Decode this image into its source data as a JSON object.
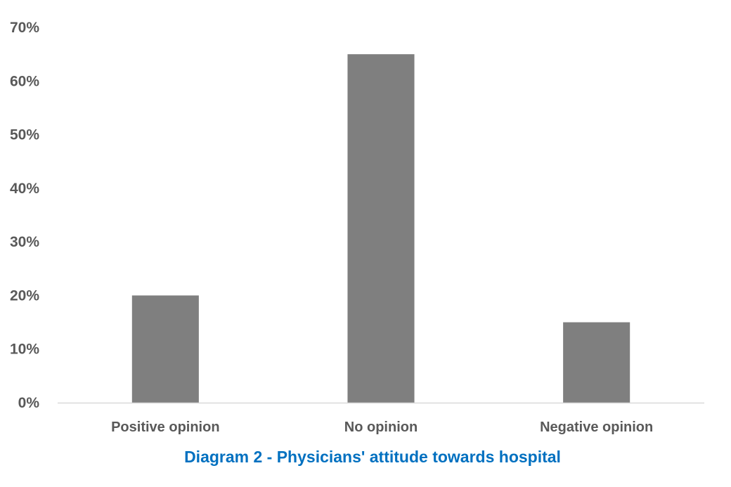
{
  "chart_data": {
    "type": "bar",
    "title": "",
    "xlabel": "",
    "ylabel": "",
    "categories": [
      "Positive opinion",
      "No opinion",
      "Negative opinion"
    ],
    "values": [
      20,
      65,
      15
    ],
    "unit": "%",
    "ylim": [
      0,
      70
    ],
    "y_ticks": [
      0,
      10,
      20,
      30,
      40,
      50,
      60,
      70
    ],
    "y_tick_labels": [
      "0%",
      "10%",
      "20%",
      "30%",
      "40%",
      "50%",
      "60%",
      "70%"
    ],
    "grid": false,
    "legend": "none",
    "bar_color": "#7f7f7f",
    "axis_color": "#d9d9d9",
    "text_color": "#595959"
  },
  "caption": {
    "text": "Diagram 2 - Physicians' attitude towards hospital",
    "color": "#0070c0"
  }
}
